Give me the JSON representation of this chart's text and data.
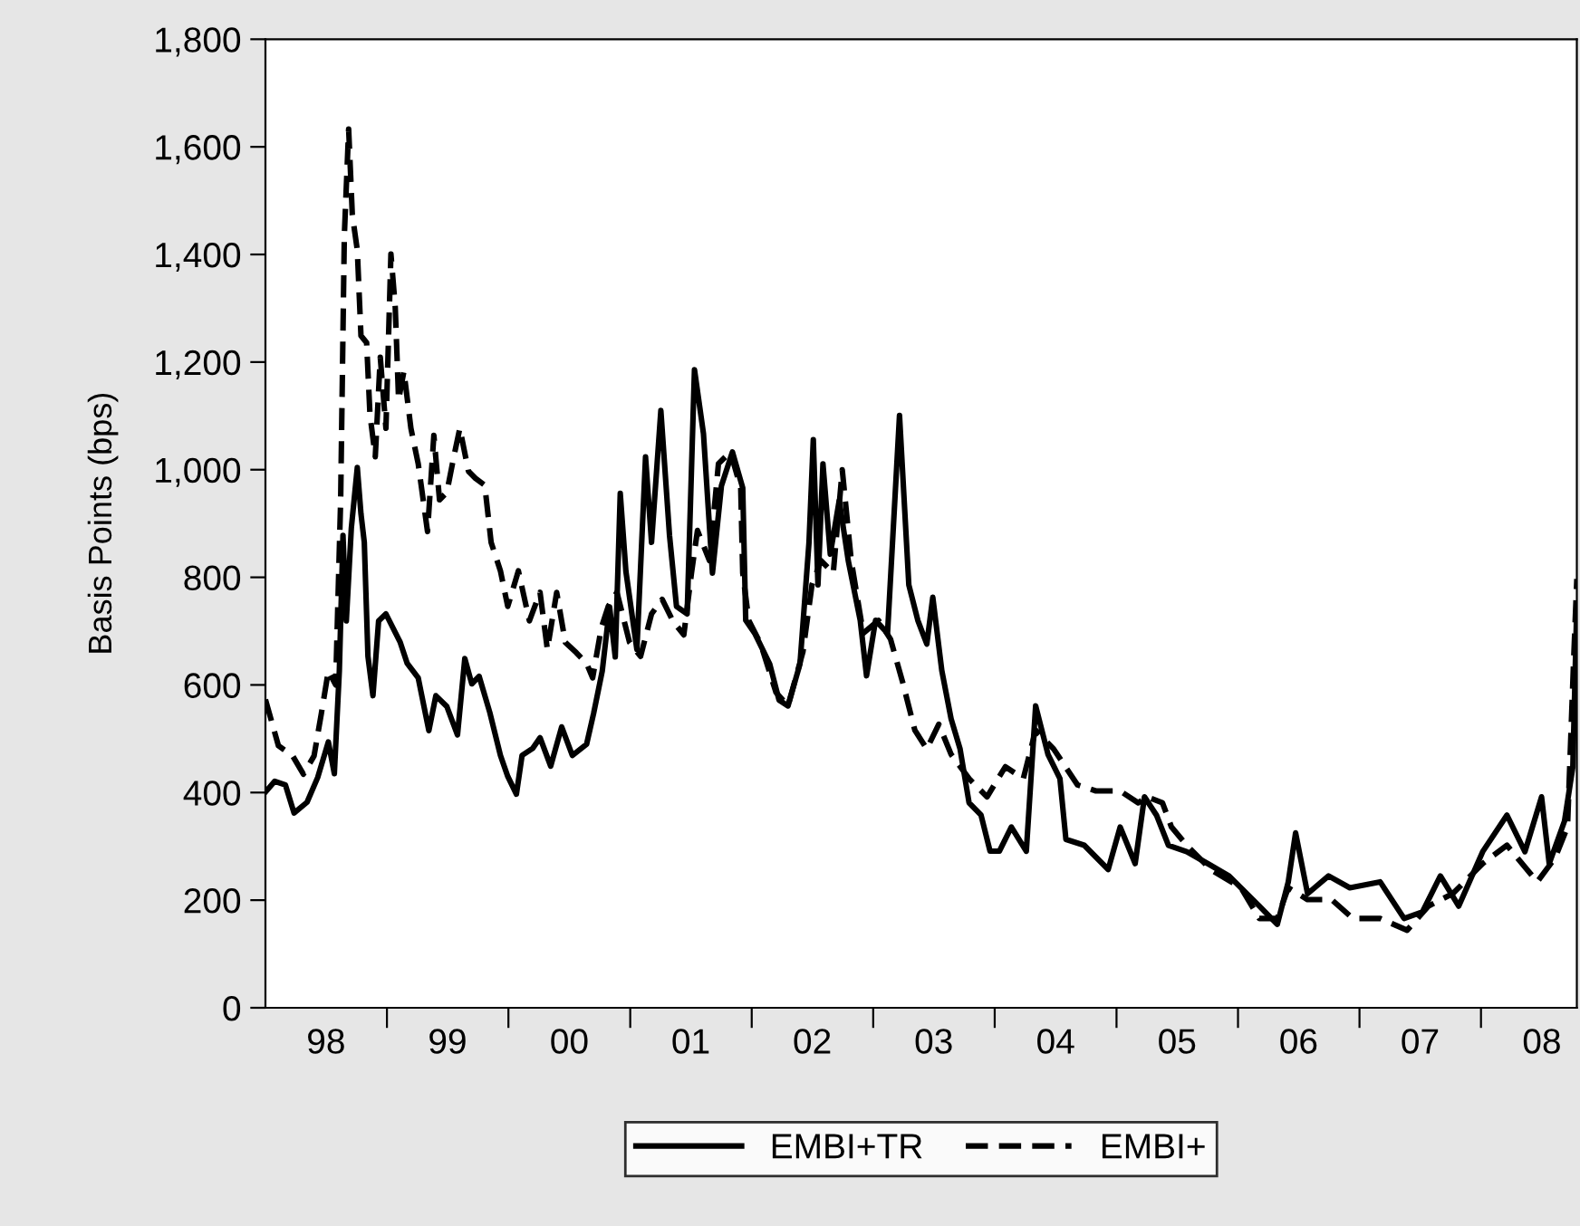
{
  "chart_data": {
    "type": "line",
    "ylabel": "Basis Points (bps)",
    "xlim": [
      "1998-01-01",
      "2008-10-15"
    ],
    "ylim": [
      0,
      1800
    ],
    "yticks": [
      {
        "value": 0,
        "label": "0"
      },
      {
        "value": 200,
        "label": "200"
      },
      {
        "value": 400,
        "label": "400"
      },
      {
        "value": 600,
        "label": "600"
      },
      {
        "value": 800,
        "label": "800"
      },
      {
        "value": 1000,
        "label": "1,000"
      },
      {
        "value": 1200,
        "label": "1,200"
      },
      {
        "value": 1400,
        "label": "1,400"
      },
      {
        "value": 1600,
        "label": "1,600"
      },
      {
        "value": 1800,
        "label": "1,800"
      }
    ],
    "xticks": [
      {
        "value": "1999-01-01",
        "label": null
      },
      {
        "value": "2000-01-01",
        "label": null
      },
      {
        "value": "2001-01-01",
        "label": null
      },
      {
        "value": "2002-01-01",
        "label": null
      },
      {
        "value": "2003-01-01",
        "label": null
      },
      {
        "value": "2004-01-01",
        "label": null
      },
      {
        "value": "2005-01-01",
        "label": null
      },
      {
        "value": "2006-01-01",
        "label": null
      },
      {
        "value": "2007-01-01",
        "label": null
      },
      {
        "value": "2008-01-01",
        "label": null
      },
      {
        "value": "1998-07-02",
        "label": "98"
      },
      {
        "value": "1999-07-02",
        "label": "99"
      },
      {
        "value": "2000-07-02",
        "label": "00"
      },
      {
        "value": "2001-07-02",
        "label": "01"
      },
      {
        "value": "2002-07-02",
        "label": "02"
      },
      {
        "value": "2003-07-02",
        "label": "03"
      },
      {
        "value": "2004-07-02",
        "label": "04"
      },
      {
        "value": "2005-07-02",
        "label": "05"
      },
      {
        "value": "2006-07-02",
        "label": "06"
      },
      {
        "value": "2007-07-02",
        "label": "07"
      },
      {
        "value": "2008-07-02",
        "label": "08"
      }
    ],
    "grid": false,
    "legend": "bottom",
    "series": [
      {
        "name": "EMBI+TR",
        "color": "#000000",
        "line_style": "solid",
        "x": [
          "1998-01-01",
          "1998-01-29",
          "1998-03-02",
          "1998-03-28",
          "1998-05-06",
          "1998-06-07",
          "1998-07-09",
          "1998-07-27",
          "1998-08-11",
          "1998-08-22",
          "1998-09-01",
          "1998-09-16",
          "1998-10-04",
          "1998-10-15",
          "1998-10-25",
          "1998-11-05",
          "1998-11-20",
          "1998-12-07",
          "1998-12-29",
          "1999-01-19",
          "1999-02-10",
          "1999-03-03",
          "1999-04-05",
          "1999-05-07",
          "1999-05-28",
          "1999-06-30",
          "1999-08-01",
          "1999-08-23",
          "1999-09-13",
          "1999-10-05",
          "1999-11-06",
          "1999-12-08",
          "1999-12-30",
          "2000-01-25",
          "2000-02-11",
          "2000-03-14",
          "2000-04-05",
          "2000-05-07",
          "2000-06-09",
          "2000-07-11",
          "2000-08-23",
          "2000-09-13",
          "2000-10-09",
          "2000-10-31",
          "2000-11-17",
          "2000-12-02",
          "2000-12-19",
          "2001-01-21",
          "2001-02-16",
          "2001-03-06",
          "2001-04-03",
          "2001-04-29",
          "2001-05-20",
          "2001-06-21",
          "2001-07-13",
          "2001-08-09",
          "2001-09-05",
          "2001-10-02",
          "2001-11-04",
          "2001-12-05",
          "2001-12-14",
          "2002-01-10",
          "2002-02-24",
          "2002-03-24",
          "2002-04-20",
          "2002-05-26",
          "2002-06-22",
          "2002-07-05",
          "2002-07-19",
          "2002-08-03",
          "2002-08-25",
          "2002-09-21",
          "2002-10-18",
          "2002-11-23",
          "2002-12-12",
          "2003-01-08",
          "2003-02-13",
          "2003-03-21",
          "2003-04-18",
          "2003-05-15",
          "2003-06-11",
          "2003-06-29",
          "2003-07-26",
          "2003-08-23",
          "2003-09-19",
          "2003-10-16",
          "2003-11-21",
          "2003-12-18",
          "2004-01-15",
          "2004-02-20",
          "2004-04-05",
          "2004-05-03",
          "2004-06-09",
          "2004-07-15",
          "2004-08-02",
          "2004-09-26",
          "2004-12-07",
          "2005-01-12",
          "2005-02-26",
          "2005-03-26",
          "2005-05-01",
          "2005-06-06",
          "2005-07-31",
          "2005-10-02",
          "2005-12-05",
          "2006-03-06",
          "2006-04-29",
          "2006-06-01",
          "2006-06-23",
          "2006-07-29",
          "2006-09-30",
          "2006-12-03",
          "2007-03-04",
          "2007-05-15",
          "2007-07-09",
          "2007-09-01",
          "2007-10-26",
          "2008-01-06",
          "2008-03-19",
          "2008-05-12",
          "2008-07-01",
          "2008-07-24",
          "2008-09-08",
          "2008-10-03",
          "2008-10-15"
        ],
        "values": [
          401,
          421,
          414,
          362,
          382,
          428,
          494,
          435,
          626,
          878,
          719,
          891,
          1004,
          918,
          865,
          653,
          580,
          719,
          732,
          706,
          679,
          640,
          613,
          515,
          580,
          560,
          507,
          649,
          602,
          616,
          549,
          469,
          430,
          397,
          469,
          482,
          502,
          449,
          522,
          469,
          490,
          547,
          626,
          745,
          652,
          956,
          811,
          666,
          1024,
          865,
          1110,
          878,
          746,
          732,
          1186,
          1067,
          808,
          970,
          1033,
          966,
          720,
          696,
          639,
          572,
          561,
          639,
          864,
          1056,
          786,
          1011,
          843,
          943,
          831,
          720,
          617,
          720,
          696,
          1101,
          786,
          720,
          676,
          763,
          627,
          537,
          481,
          381,
          358,
          291,
          291,
          336,
          291,
          561,
          471,
          426,
          313,
          302,
          257,
          336,
          268,
          392,
          358,
          302,
          290,
          268,
          245,
          189,
          155,
          234,
          325,
          212,
          245,
          223,
          234,
          166,
          178,
          245,
          189,
          290,
          358,
          290,
          392,
          268,
          347,
          448,
          752
        ]
      },
      {
        "name": "EMBI+",
        "color": "#000000",
        "line_style": "dashed",
        "x": [
          "1998-01-01",
          "1998-02-09",
          "1998-03-24",
          "1998-04-25",
          "1998-05-27",
          "1998-06-18",
          "1998-07-09",
          "1998-07-31",
          "1998-08-15",
          "1998-08-26",
          "1998-09-08",
          "1998-09-19",
          "1998-10-04",
          "1998-10-15",
          "1998-11-01",
          "1998-11-11",
          "1998-11-27",
          "1998-12-12",
          "1998-12-29",
          "1999-01-13",
          "1999-01-26",
          "1999-02-05",
          "1999-02-21",
          "1999-03-14",
          "1999-04-05",
          "1999-05-03",
          "1999-05-22",
          "1999-06-08",
          "1999-06-30",
          "1999-07-21",
          "1999-08-08",
          "1999-09-03",
          "1999-09-24",
          "1999-10-22",
          "1999-11-10",
          "1999-12-08",
          "1999-12-30",
          "2000-01-31",
          "2000-03-04",
          "2000-04-05",
          "2000-04-27",
          "2000-05-25",
          "2000-06-20",
          "2000-07-23",
          "2000-08-23",
          "2000-09-10",
          "2000-10-06",
          "2000-10-27",
          "2000-11-22",
          "2000-12-30",
          "2001-02-01",
          "2001-03-06",
          "2001-04-07",
          "2001-05-09",
          "2001-06-11",
          "2001-07-04",
          "2001-07-22",
          "2001-08-27",
          "2001-09-23",
          "2001-10-29",
          "2001-11-29",
          "2001-12-05",
          "2001-12-23",
          "2002-01-28",
          "2002-03-15",
          "2002-04-20",
          "2002-06-04",
          "2002-07-01",
          "2002-07-28",
          "2002-09-03",
          "2002-09-30",
          "2002-10-27",
          "2002-12-02",
          "2003-01-17",
          "2003-02-22",
          "2003-03-30",
          "2003-05-06",
          "2003-06-11",
          "2003-07-17",
          "2003-08-23",
          "2003-10-16",
          "2003-12-09",
          "2004-02-02",
          "2004-03-27",
          "2004-05-03",
          "2004-06-26",
          "2004-09-06",
          "2004-10-31",
          "2005-01-12",
          "2005-03-07",
          "2005-04-03",
          "2005-05-19",
          "2005-06-15",
          "2005-07-31",
          "2005-10-11",
          "2006-01-10",
          "2006-03-06",
          "2006-04-29",
          "2006-06-01",
          "2006-07-29",
          "2006-10-09",
          "2006-12-12",
          "2007-03-04",
          "2007-05-24",
          "2007-07-27",
          "2007-10-08",
          "2008-01-06",
          "2008-03-19",
          "2008-06-18",
          "2008-08-11",
          "2008-09-17",
          "2008-10-05",
          "2008-10-15"
        ],
        "values": [
          573,
          487,
          468,
          434,
          468,
          547,
          626,
          600,
          944,
          1434,
          1633,
          1474,
          1408,
          1249,
          1236,
          1103,
          1024,
          1209,
          1077,
          1401,
          1302,
          1130,
          1183,
          1077,
          1011,
          885,
          1064,
          944,
          958,
          1024,
          1077,
          997,
          984,
          971,
          865,
          812,
          746,
          812,
          719,
          772,
          666,
          772,
          679,
          660,
          640,
          613,
          706,
          746,
          772,
          679,
          653,
          732,
          759,
          719,
          693,
          808,
          887,
          831,
          1011,
          1033,
          966,
          808,
          720,
          676,
          586,
          561,
          662,
          786,
          831,
          808,
          1000,
          831,
          696,
          720,
          685,
          606,
          516,
          481,
          527,
          471,
          426,
          392,
          448,
          426,
          516,
          481,
          414,
          403,
          403,
          381,
          392,
          381,
          336,
          302,
          257,
          223,
          166,
          166,
          223,
          201,
          201,
          166,
          166,
          144,
          189,
          212,
          268,
          302,
          234,
          279,
          336,
          640,
          797
        ]
      }
    ]
  }
}
